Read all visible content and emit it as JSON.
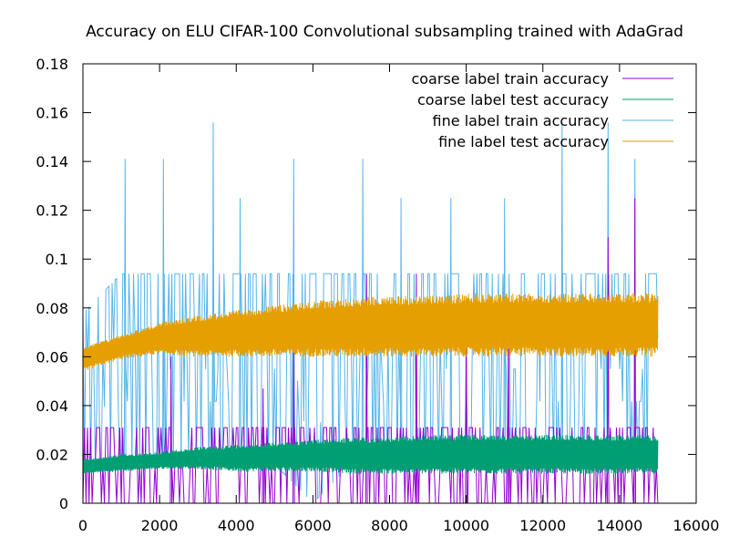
{
  "chart_data": {
    "type": "line",
    "title": "Accuracy on ELU CIFAR-100 Convolutional subsampling trained with AdaGrad",
    "xlabel": "",
    "ylabel": "",
    "xlim": [
      0,
      16000
    ],
    "ylim": [
      0,
      0.18
    ],
    "xticks": [
      0,
      2000,
      4000,
      6000,
      8000,
      10000,
      12000,
      14000,
      16000
    ],
    "yticks": [
      0,
      0.02,
      0.04,
      0.06,
      0.08,
      0.1,
      0.12,
      0.14,
      0.16,
      0.18
    ],
    "xtick_labels": [
      "0",
      "2000",
      "4000",
      "6000",
      "8000",
      "10000",
      "12000",
      "14000",
      "16000"
    ],
    "ytick_labels": [
      "0",
      "0.02",
      "0.04",
      "0.06",
      "0.08",
      "0.1",
      "0.12",
      "0.14",
      "0.16",
      "0.18"
    ],
    "grid": false,
    "legend_position": "top-right",
    "series": [
      {
        "name": "coarse label train accuracy",
        "color": "#9400d3",
        "description_points": {
          "x": [
            0,
            1000,
            2000,
            3000,
            4000,
            5000,
            6000,
            7000,
            8000,
            9000,
            10000,
            11000,
            12000,
            13000,
            14000,
            15000
          ],
          "y_low": [
            0,
            0,
            0,
            0,
            0,
            0,
            0,
            0,
            0,
            0,
            0,
            0,
            0,
            0,
            0,
            0
          ],
          "y_typical_high": [
            0.031,
            0.031,
            0.031,
            0.031,
            0.031,
            0.031,
            0.031,
            0.031,
            0.031,
            0.031,
            0.031,
            0.031,
            0.031,
            0.031,
            0.031,
            0.031
          ],
          "spikes": [
            [
              2300,
              0.06
            ],
            [
              4700,
              0.047
            ],
            [
              5500,
              0.062
            ],
            [
              7400,
              0.094
            ],
            [
              8700,
              0.094
            ],
            [
              10000,
              0.078
            ],
            [
              11100,
              0.078
            ],
            [
              13700,
              0.109
            ],
            [
              14400,
              0.125
            ]
          ]
        }
      },
      {
        "name": "coarse label test accuracy",
        "color": "#009e73",
        "description_points": {
          "x": [
            0,
            1000,
            2000,
            3000,
            4000,
            5000,
            6000,
            7000,
            8000,
            9000,
            10000,
            11000,
            12000,
            13000,
            14000,
            15000
          ],
          "y_low": [
            0.012,
            0.013,
            0.014,
            0.014,
            0.013,
            0.013,
            0.013,
            0.012,
            0.012,
            0.012,
            0.012,
            0.012,
            0.012,
            0.012,
            0.012,
            0.012
          ],
          "y_high": [
            0.018,
            0.02,
            0.021,
            0.023,
            0.024,
            0.025,
            0.026,
            0.027,
            0.027,
            0.028,
            0.028,
            0.028,
            0.028,
            0.028,
            0.028,
            0.028
          ]
        }
      },
      {
        "name": "fine label train accuracy",
        "color": "#56b4e9",
        "description_points": {
          "x": [
            0,
            1000,
            2000,
            3000,
            4000,
            5000,
            6000,
            7000,
            8000,
            9000,
            10000,
            11000,
            12000,
            13000,
            14000,
            15000
          ],
          "y_low": [
            0.016,
            0.016,
            0.016,
            0.016,
            0.016,
            0.016,
            0,
            0.016,
            0.016,
            0.016,
            0.016,
            0.016,
            0.016,
            0.016,
            0.016,
            0.016
          ],
          "y_typical_high": [
            0.078,
            0.094,
            0.094,
            0.094,
            0.094,
            0.094,
            0.094,
            0.094,
            0.094,
            0.094,
            0.094,
            0.094,
            0.094,
            0.094,
            0.094,
            0.094
          ],
          "spikes": [
            [
              1100,
              0.141
            ],
            [
              2100,
              0.141
            ],
            [
              3400,
              0.156
            ],
            [
              4100,
              0.125
            ],
            [
              5500,
              0.141
            ],
            [
              7300,
              0.141
            ],
            [
              8300,
              0.125
            ],
            [
              9600,
              0.125
            ],
            [
              11000,
              0.125
            ],
            [
              12500,
              0.156
            ],
            [
              13700,
              0.156
            ],
            [
              14400,
              0.141
            ]
          ]
        }
      },
      {
        "name": "fine label test accuracy",
        "color": "#e69f00",
        "description_points": {
          "x": [
            0,
            1000,
            2000,
            3000,
            4000,
            5000,
            6000,
            7000,
            8000,
            9000,
            10000,
            11000,
            12000,
            13000,
            14000,
            15000
          ],
          "y_low": [
            0.054,
            0.059,
            0.061,
            0.06,
            0.06,
            0.06,
            0.06,
            0.06,
            0.06,
            0.06,
            0.06,
            0.06,
            0.06,
            0.06,
            0.06,
            0.06
          ],
          "y_high": [
            0.064,
            0.069,
            0.074,
            0.077,
            0.079,
            0.081,
            0.083,
            0.084,
            0.085,
            0.085,
            0.086,
            0.086,
            0.086,
            0.086,
            0.086,
            0.086
          ]
        }
      }
    ]
  }
}
